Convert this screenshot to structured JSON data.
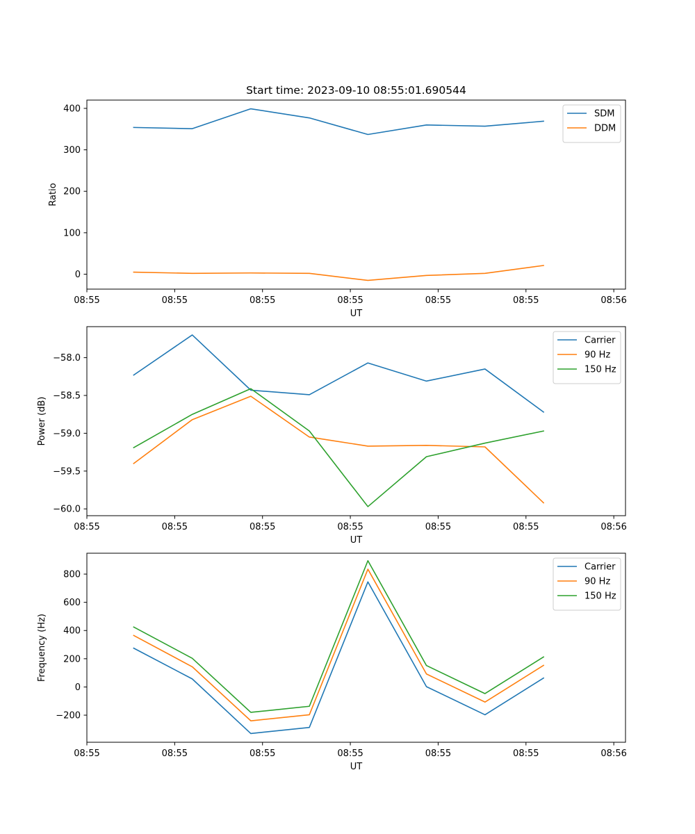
{
  "figure_title": "Start time: 2023-09-10 08:55:01.690544",
  "chart_data": [
    {
      "type": "line",
      "title": "Start time: 2023-09-10 08:55:01.690544",
      "xlabel": "UT",
      "ylabel": "Ratio",
      "x": [
        1,
        2,
        3,
        4,
        5,
        6,
        7,
        8
      ],
      "xlim": [
        0.2,
        9.4
      ],
      "xticks": [
        0.2,
        1.7,
        3.2,
        4.7,
        6.2,
        7.7,
        9.2
      ],
      "xtick_labels": [
        "08:55",
        "08:55",
        "08:55",
        "08:55",
        "08:55",
        "08:55",
        "08:56"
      ],
      "ylim": [
        -36,
        420
      ],
      "yticks": [
        0,
        100,
        200,
        300,
        400
      ],
      "ytick_labels": [
        "0",
        "100",
        "200",
        "300",
        "400"
      ],
      "legend": "top-right",
      "series": [
        {
          "name": "SDM",
          "color": "#1f77b4",
          "values": [
            354,
            351,
            399,
            377,
            337,
            360,
            357,
            369
          ]
        },
        {
          "name": "DDM",
          "color": "#ff7f0e",
          "values": [
            5,
            2,
            3,
            2,
            -15,
            -3,
            2,
            21
          ]
        }
      ]
    },
    {
      "type": "line",
      "title": "",
      "xlabel": "UT",
      "ylabel": "Power (dB)",
      "x": [
        1,
        2,
        3,
        4,
        5,
        6,
        7,
        8
      ],
      "xlim": [
        0.2,
        9.4
      ],
      "xticks": [
        0.2,
        1.7,
        3.2,
        4.7,
        6.2,
        7.7,
        9.2
      ],
      "xtick_labels": [
        "08:55",
        "08:55",
        "08:55",
        "08:55",
        "08:55",
        "08:55",
        "08:56"
      ],
      "ylim": [
        -60.09,
        -57.59
      ],
      "yticks": [
        -60.0,
        -59.5,
        -59.0,
        -58.5,
        -58.0
      ],
      "ytick_labels": [
        "−60.0",
        "−59.5",
        "−59.0",
        "−58.5",
        "−58.0"
      ],
      "legend": "top-right",
      "series": [
        {
          "name": "Carrier",
          "color": "#1f77b4",
          "values": [
            -58.23,
            -57.7,
            -58.43,
            -58.49,
            -58.07,
            -58.31,
            -58.15,
            -58.72
          ]
        },
        {
          "name": "90 Hz",
          "color": "#ff7f0e",
          "values": [
            -59.4,
            -58.82,
            -58.51,
            -59.05,
            -59.17,
            -59.16,
            -59.18,
            -59.92
          ]
        },
        {
          "name": "150 Hz",
          "color": "#2ca02c",
          "values": [
            -59.19,
            -58.75,
            -58.41,
            -58.97,
            -59.97,
            -59.31,
            -59.13,
            -58.97
          ]
        }
      ]
    },
    {
      "type": "line",
      "title": "",
      "xlabel": "UT",
      "ylabel": "Frequency (Hz)",
      "x": [
        1,
        2,
        3,
        4,
        5,
        6,
        7,
        8
      ],
      "xlim": [
        0.2,
        9.4
      ],
      "xticks": [
        0.2,
        1.7,
        3.2,
        4.7,
        6.2,
        7.7,
        9.2
      ],
      "xtick_labels": [
        "08:55",
        "08:55",
        "08:55",
        "08:55",
        "08:55",
        "08:55",
        "08:56"
      ],
      "ylim": [
        -392,
        948
      ],
      "yticks": [
        -200,
        0,
        200,
        400,
        600,
        800
      ],
      "ytick_labels": [
        "−200",
        "0",
        "200",
        "400",
        "600",
        "800"
      ],
      "legend": "top-right",
      "series": [
        {
          "name": "Carrier",
          "color": "#1f77b4",
          "values": [
            275,
            57,
            -330,
            -287,
            745,
            2,
            -197,
            63
          ]
        },
        {
          "name": "90 Hz",
          "color": "#ff7f0e",
          "values": [
            365,
            143,
            -240,
            -197,
            835,
            92,
            -107,
            153
          ]
        },
        {
          "name": "150 Hz",
          "color": "#2ca02c",
          "values": [
            425,
            203,
            -180,
            -137,
            895,
            152,
            -47,
            213
          ]
        }
      ]
    }
  ]
}
